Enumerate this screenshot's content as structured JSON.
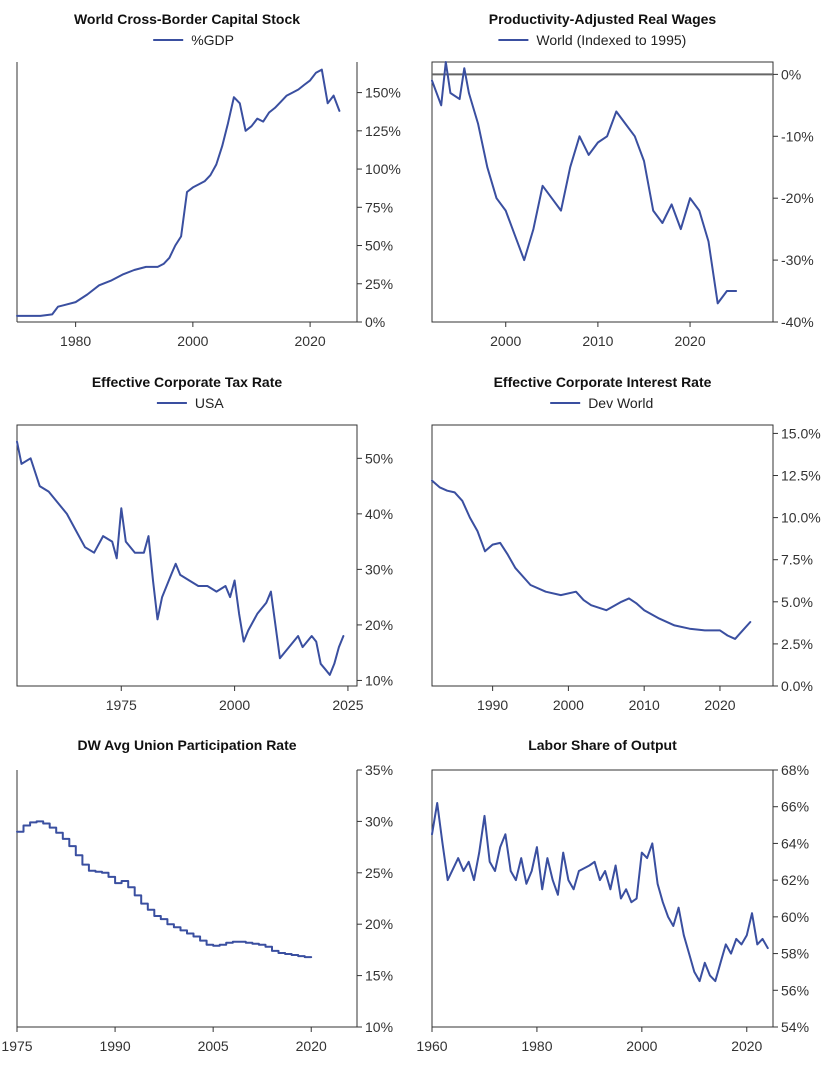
{
  "colors": {
    "series": "#3a4fa0",
    "axis": "#333333",
    "reference": "#666666"
  },
  "chart_data": [
    {
      "type": "line",
      "title": "World Cross-Border Capital Stock",
      "xlabel": "",
      "ylabel": "",
      "xlim": [
        1970,
        2028
      ],
      "ylim": [
        0,
        170
      ],
      "xticks": [
        1980,
        2000,
        2020
      ],
      "yticks": [
        0,
        25,
        50,
        75,
        100,
        125,
        150
      ],
      "ytick_labels": [
        "0%",
        "25%",
        "50%",
        "75%",
        "100%",
        "125%",
        "150%"
      ],
      "yaxis_side": "right",
      "frame": "left-bottom",
      "legend_position": "top-center",
      "series": [
        {
          "name": "%GDP",
          "x": [
            1970,
            1972,
            1974,
            1976,
            1977,
            1978,
            1980,
            1982,
            1984,
            1986,
            1988,
            1990,
            1992,
            1994,
            1995,
            1996,
            1997,
            1998,
            1999,
            2000,
            2001,
            2002,
            2003,
            2004,
            2005,
            2006,
            2007,
            2008,
            2009,
            2010,
            2011,
            2012,
            2013,
            2014,
            2015,
            2016,
            2017,
            2018,
            2019,
            2020,
            2021,
            2022,
            2023,
            2024,
            2025
          ],
          "y": [
            4,
            4,
            4,
            5,
            10,
            11,
            13,
            18,
            24,
            27,
            31,
            34,
            36,
            36,
            38,
            42,
            50,
            56,
            85,
            88,
            90,
            92,
            96,
            103,
            115,
            130,
            147,
            143,
            125,
            128,
            133,
            131,
            137,
            140,
            144,
            148,
            150,
            152,
            155,
            158,
            163,
            165,
            143,
            148,
            138
          ]
        }
      ]
    },
    {
      "type": "line",
      "title": "Productivity-Adjusted Real Wages",
      "xlabel": "",
      "ylabel": "",
      "xlim": [
        1992,
        2029
      ],
      "ylim": [
        -40,
        2
      ],
      "xticks": [
        2000,
        2010,
        2020
      ],
      "yticks": [
        0,
        -10,
        -20,
        -30,
        -40
      ],
      "ytick_labels": [
        "0%",
        "-10%",
        "-20%",
        "-30%",
        "-40%"
      ],
      "yaxis_side": "right",
      "frame": "box",
      "reference_line_y": 0,
      "legend_position": "top-center",
      "series": [
        {
          "name": "World (Indexed to 1995)",
          "x": [
            1992,
            1993,
            1993.5,
            1994,
            1995,
            1995.5,
            1996,
            1997,
            1998,
            1999,
            2000,
            2001,
            2002,
            2003,
            2004,
            2005,
            2006,
            2007,
            2008,
            2009,
            2010,
            2011,
            2012,
            2013,
            2014,
            2015,
            2016,
            2017,
            2018,
            2019,
            2020,
            2021,
            2022,
            2023,
            2024,
            2025
          ],
          "y": [
            -1,
            -5,
            2,
            -3,
            -4,
            1,
            -3,
            -8,
            -15,
            -20,
            -22,
            -26,
            -30,
            -25,
            -18,
            -20,
            -22,
            -15,
            -10,
            -13,
            -11,
            -10,
            -6,
            -8,
            -10,
            -14,
            -22,
            -24,
            -21,
            -25,
            -20,
            -22,
            -27,
            -37,
            -35,
            -35
          ]
        }
      ]
    },
    {
      "type": "line",
      "title": "Effective Corporate Tax Rate",
      "xlabel": "",
      "ylabel": "",
      "xlim": [
        1952,
        2027
      ],
      "ylim": [
        9,
        56
      ],
      "xticks": [
        1975,
        2000,
        2025
      ],
      "yticks": [
        10,
        20,
        30,
        40,
        50
      ],
      "ytick_labels": [
        "10%",
        "20%",
        "30%",
        "40%",
        "50%"
      ],
      "yaxis_side": "right",
      "frame": "box",
      "legend_position": "top-center",
      "series": [
        {
          "name": "USA",
          "x": [
            1952,
            1953,
            1955,
            1957,
            1959,
            1961,
            1963,
            1965,
            1967,
            1969,
            1971,
            1973,
            1974,
            1975,
            1976,
            1978,
            1980,
            1981,
            1982,
            1983,
            1984,
            1985,
            1986,
            1987,
            1988,
            1990,
            1992,
            1994,
            1996,
            1998,
            1999,
            2000,
            2001,
            2002,
            2003,
            2005,
            2007,
            2008,
            2009,
            2010,
            2012,
            2014,
            2015,
            2017,
            2018,
            2019,
            2020,
            2021,
            2022,
            2023,
            2024
          ],
          "y": [
            53,
            49,
            50,
            45,
            44,
            42,
            40,
            37,
            34,
            33,
            36,
            35,
            32,
            41,
            35,
            33,
            33,
            36,
            28,
            21,
            25,
            27,
            29,
            31,
            29,
            28,
            27,
            27,
            26,
            27,
            25,
            28,
            22,
            17,
            19,
            22,
            24,
            26,
            20,
            14,
            16,
            18,
            16,
            18,
            17,
            13,
            12,
            11,
            13,
            16,
            18
          ]
        }
      ]
    },
    {
      "type": "line",
      "title": "Effective Corporate Interest Rate",
      "xlabel": "",
      "ylabel": "",
      "xlim": [
        1982,
        2027
      ],
      "ylim": [
        0,
        15.5
      ],
      "xticks": [
        1990,
        2000,
        2010,
        2020
      ],
      "yticks": [
        0,
        2.5,
        5,
        7.5,
        10,
        12.5,
        15
      ],
      "ytick_labels": [
        "0.0%",
        "2.5%",
        "5.0%",
        "7.5%",
        "10.0%",
        "12.5%",
        "15.0%"
      ],
      "yaxis_side": "right",
      "frame": "box",
      "legend_position": "top-center",
      "series": [
        {
          "name": "Dev World",
          "x": [
            1982,
            1983,
            1984,
            1985,
            1986,
            1987,
            1988,
            1989,
            1990,
            1991,
            1992,
            1993,
            1995,
            1997,
            1999,
            2001,
            2002,
            2003,
            2005,
            2007,
            2008,
            2009,
            2010,
            2012,
            2014,
            2016,
            2018,
            2020,
            2021,
            2022,
            2023,
            2024
          ],
          "y": [
            12.2,
            11.8,
            11.6,
            11.5,
            11.0,
            10.0,
            9.2,
            8.0,
            8.4,
            8.5,
            7.8,
            7.0,
            6.0,
            5.6,
            5.4,
            5.6,
            5.1,
            4.8,
            4.5,
            5.0,
            5.2,
            4.9,
            4.5,
            4.0,
            3.6,
            3.4,
            3.3,
            3.3,
            3.0,
            2.8,
            3.3,
            3.8
          ]
        }
      ]
    },
    {
      "type": "line",
      "title": "DW Avg Union Participation Rate",
      "xlabel": "",
      "ylabel": "",
      "xlim": [
        1975,
        2027
      ],
      "ylim": [
        10,
        35
      ],
      "xticks": [
        1975,
        1990,
        2005,
        2020
      ],
      "yticks": [
        10,
        15,
        20,
        25,
        30,
        35
      ],
      "ytick_labels": [
        "10%",
        "15%",
        "20%",
        "25%",
        "30%",
        "35%"
      ],
      "yaxis_side": "right",
      "frame": "left-bottom",
      "legend_position": "none",
      "series": [
        {
          "name": "",
          "step": true,
          "x": [
            1975,
            1976,
            1977,
            1978,
            1979,
            1980,
            1981,
            1982,
            1983,
            1984,
            1985,
            1986,
            1987,
            1988,
            1989,
            1990,
            1991,
            1992,
            1993,
            1994,
            1995,
            1996,
            1997,
            1998,
            1999,
            2000,
            2001,
            2002,
            2003,
            2004,
            2005,
            2006,
            2007,
            2008,
            2009,
            2010,
            2011,
            2012,
            2013,
            2014,
            2015,
            2016,
            2017,
            2018,
            2019,
            2020
          ],
          "y": [
            29.0,
            29.6,
            29.9,
            30.0,
            29.8,
            29.4,
            28.9,
            28.3,
            27.6,
            26.7,
            25.8,
            25.2,
            25.1,
            25.0,
            24.6,
            24.0,
            24.2,
            23.6,
            22.8,
            22.0,
            21.4,
            20.8,
            20.5,
            20.0,
            19.7,
            19.4,
            19.1,
            18.8,
            18.4,
            18.0,
            17.9,
            18.0,
            18.2,
            18.3,
            18.3,
            18.2,
            18.1,
            18.0,
            17.8,
            17.4,
            17.2,
            17.1,
            17.0,
            16.9,
            16.8,
            16.8
          ]
        }
      ]
    },
    {
      "type": "line",
      "title": "Labor Share of Output",
      "xlabel": "",
      "ylabel": "",
      "xlim": [
        1960,
        2025
      ],
      "ylim": [
        54,
        68
      ],
      "xticks": [
        1960,
        1980,
        2000,
        2020
      ],
      "yticks": [
        54,
        56,
        58,
        60,
        62,
        64,
        66,
        68
      ],
      "ytick_labels": [
        "54%",
        "56%",
        "58%",
        "60%",
        "62%",
        "64%",
        "66%",
        "68%"
      ],
      "yaxis_side": "right",
      "frame": "box",
      "legend_position": "none",
      "series": [
        {
          "name": "",
          "x": [
            1960,
            1961,
            1962,
            1963,
            1965,
            1966,
            1967,
            1968,
            1969,
            1970,
            1971,
            1972,
            1973,
            1974,
            1975,
            1976,
            1977,
            1978,
            1979,
            1980,
            1981,
            1982,
            1983,
            1984,
            1985,
            1986,
            1987,
            1988,
            1990,
            1991,
            1992,
            1993,
            1994,
            1995,
            1996,
            1997,
            1998,
            1999,
            2000,
            2001,
            2002,
            2003,
            2004,
            2005,
            2006,
            2007,
            2008,
            2009,
            2010,
            2011,
            2012,
            2013,
            2014,
            2015,
            2016,
            2017,
            2018,
            2019,
            2020,
            2021,
            2022,
            2023,
            2024
          ],
          "y": [
            64.5,
            66.2,
            64.0,
            62.0,
            63.2,
            62.5,
            63.0,
            62.0,
            63.5,
            65.5,
            63.0,
            62.5,
            63.8,
            64.5,
            62.5,
            62.0,
            63.2,
            61.8,
            62.5,
            63.8,
            61.5,
            63.2,
            62.0,
            61.2,
            63.5,
            62.0,
            61.5,
            62.5,
            62.8,
            63.0,
            62.0,
            62.5,
            61.5,
            62.8,
            61.0,
            61.5,
            60.8,
            61.0,
            63.5,
            63.2,
            64.0,
            61.8,
            60.8,
            60.0,
            59.5,
            60.5,
            59.0,
            58.0,
            57.0,
            56.5,
            57.5,
            56.8,
            56.5,
            57.5,
            58.5,
            58.0,
            58.8,
            58.5,
            59.0,
            60.2,
            58.5,
            58.8,
            58.3
          ]
        }
      ]
    }
  ]
}
